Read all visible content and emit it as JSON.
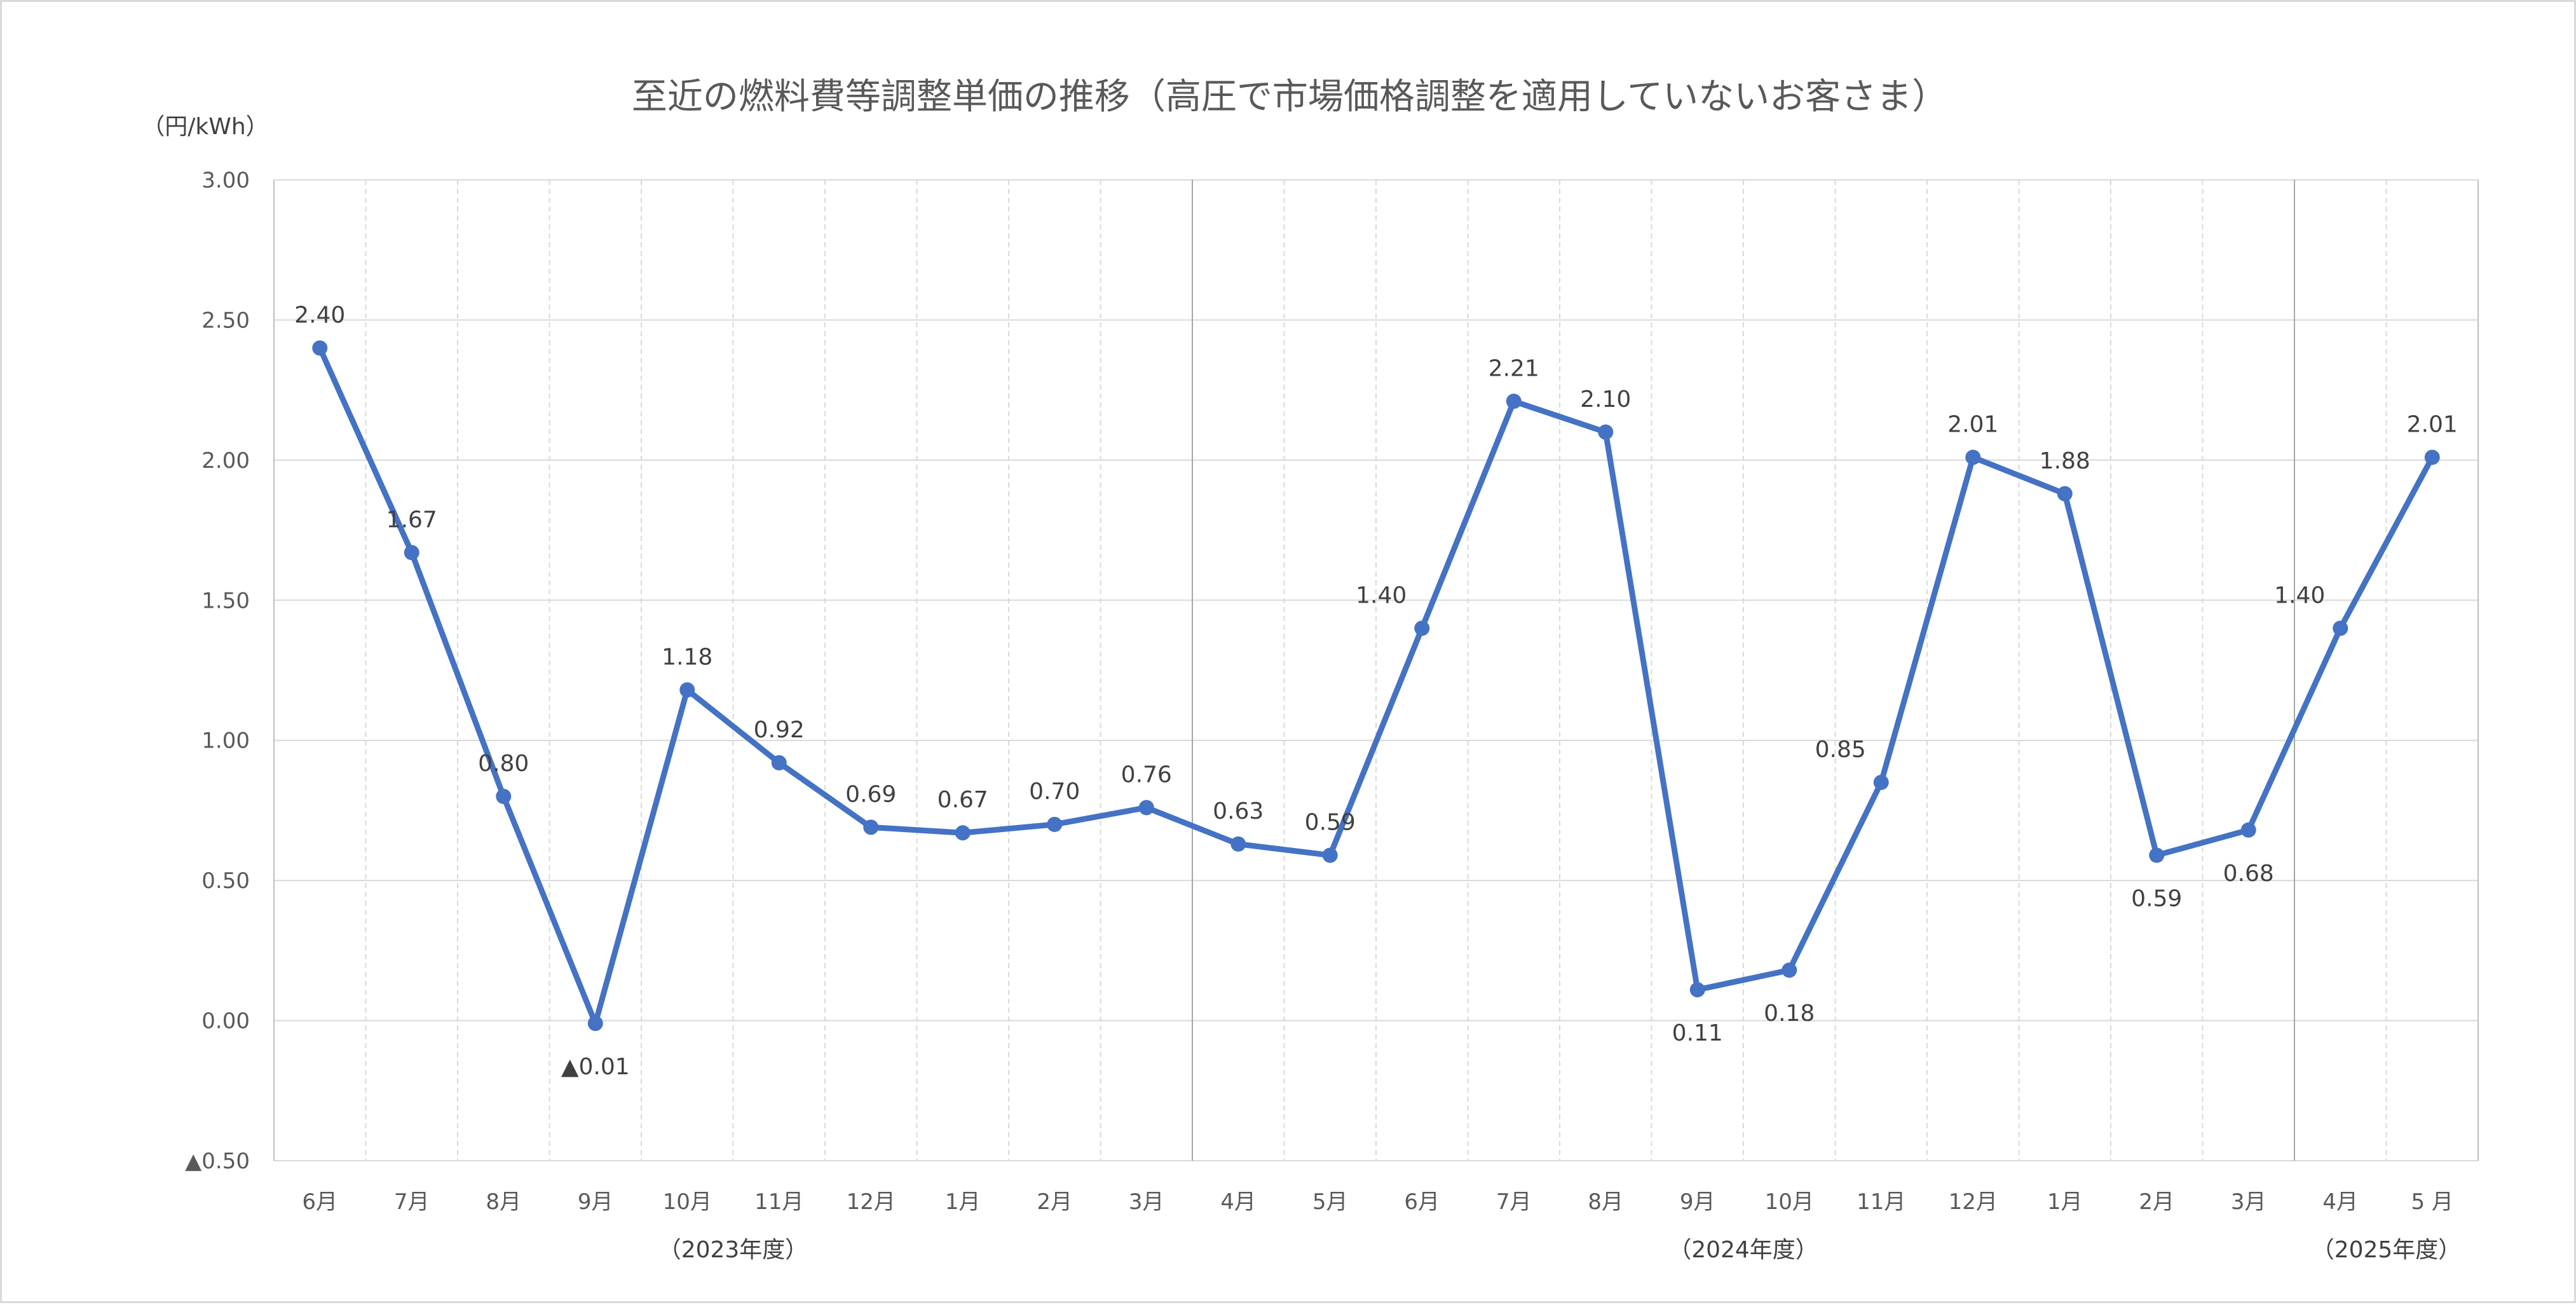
{
  "chart_data": {
    "type": "line",
    "title": "至近の燃料費等調整単価の推移（高圧で市場価格調整を適用していないお客さま）",
    "ylabel": "（円/kWh）",
    "ylim": [
      -0.5,
      3.0
    ],
    "ytick_values": [
      3.0,
      2.5,
      2.0,
      1.5,
      1.0,
      0.5,
      0.0,
      -0.5
    ],
    "ytick_labels": [
      "3.00",
      "2.50",
      "2.00",
      "1.50",
      "1.00",
      "0.50",
      "0.00",
      "▲0.50"
    ],
    "categories": [
      "6月",
      "7月",
      "8月",
      "9月",
      "10月",
      "11月",
      "12月",
      "1月",
      "2月",
      "3月",
      "4月",
      "5月",
      "6月",
      "7月",
      "8月",
      "9月",
      "10月",
      "11月",
      "12月",
      "1月",
      "2月",
      "3月",
      "4月",
      "5 月"
    ],
    "groups": [
      {
        "label": "（2023年度）",
        "start": 0,
        "end": 9
      },
      {
        "label": "（2024年度）",
        "start": 10,
        "end": 21
      },
      {
        "label": "（2025年度）",
        "start": 22,
        "end": 23
      }
    ],
    "series": [
      {
        "values": [
          2.4,
          1.67,
          0.8,
          -0.01,
          1.18,
          0.92,
          0.69,
          0.67,
          0.7,
          0.76,
          0.63,
          0.59,
          1.4,
          2.21,
          2.1,
          0.11,
          0.18,
          0.85,
          2.01,
          1.88,
          0.59,
          0.68,
          1.4,
          2.01
        ],
        "labels": [
          "2.40",
          "1.67",
          "0.80",
          "▲0.01",
          "1.18",
          "0.92",
          "0.69",
          "0.67",
          "0.70",
          "0.76",
          "0.63",
          "0.59",
          "1.40",
          "2.21",
          "2.10",
          "0.11",
          "0.18",
          "0.85",
          "2.01",
          "1.88",
          "0.59",
          "0.68",
          "1.40",
          "2.01"
        ],
        "label_positions": [
          "above",
          "above",
          "above",
          "below",
          "above",
          "above",
          "above",
          "above",
          "above",
          "above",
          "above",
          "above",
          "left",
          "above",
          "above",
          "below",
          "below",
          "left",
          "above",
          "above",
          "below",
          "below",
          "left",
          "above"
        ],
        "color": "#4472c4"
      }
    ],
    "grid": true,
    "legend": "none"
  }
}
